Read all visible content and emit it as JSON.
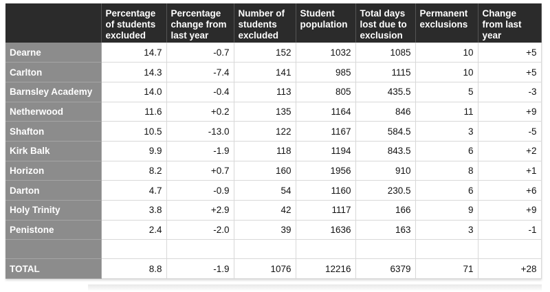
{
  "table": {
    "headers": [
      "",
      "Percentage of students excluded",
      "Percentage change from last year",
      "Number of students excluded",
      "Student population",
      "Total days lost due to exclusion",
      "Permanent exclusions",
      "Change from last year"
    ],
    "rows": [
      {
        "name": "Dearne",
        "cells": [
          "14.7",
          "-0.7",
          "152",
          "1032",
          "1085",
          "10",
          "+5"
        ]
      },
      {
        "name": "Carlton",
        "cells": [
          "14.3",
          "-7.4",
          "141",
          "985",
          "1115",
          "10",
          "+5"
        ]
      },
      {
        "name": "Barnsley Academy",
        "cells": [
          "14.0",
          "-0.4",
          "113",
          "805",
          "435.5",
          "5",
          "-3"
        ]
      },
      {
        "name": "Netherwood",
        "cells": [
          "11.6",
          "+0.2",
          "135",
          "1164",
          "846",
          "11",
          "+9"
        ]
      },
      {
        "name": "Shafton",
        "cells": [
          "10.5",
          "-13.0",
          "122",
          "1167",
          "584.5",
          "3",
          "-5"
        ]
      },
      {
        "name": "Kirk Balk",
        "cells": [
          "9.9",
          "-1.9",
          "118",
          "1194",
          "843.5",
          "6",
          "+2"
        ]
      },
      {
        "name": "Horizon",
        "cells": [
          "8.2",
          "+0.7",
          "160",
          "1956",
          "910",
          "8",
          "+1"
        ]
      },
      {
        "name": "Darton",
        "cells": [
          "4.7",
          "-0.9",
          "54",
          "1160",
          "230.5",
          "6",
          "+6"
        ]
      },
      {
        "name": "Holy Trinity",
        "cells": [
          "3.8",
          "+2.9",
          "42",
          "1117",
          "166",
          "9",
          "+9"
        ]
      },
      {
        "name": "Penistone",
        "cells": [
          "2.4",
          "-2.0",
          "39",
          "1636",
          "163",
          "3",
          "-1"
        ]
      }
    ],
    "total": {
      "name": "TOTAL",
      "cells": [
        "8.8",
        "-1.9",
        "1076",
        "12216",
        "6379",
        "71",
        "+28"
      ]
    }
  }
}
